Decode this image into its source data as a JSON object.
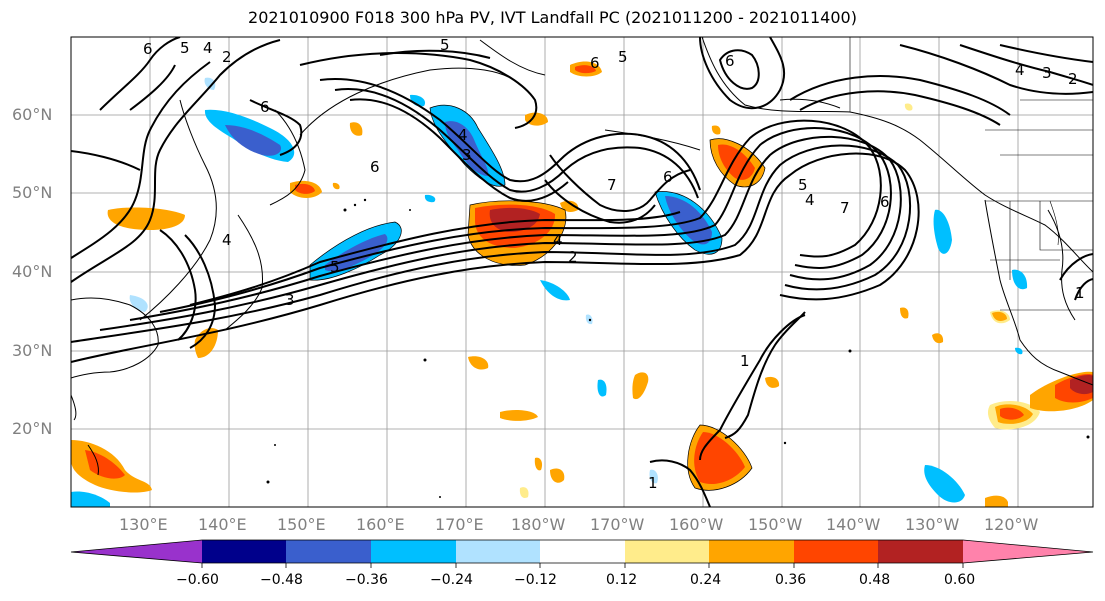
{
  "title": "2021010900 F018 300 hPa PV, IVT Landfall PC (2021011200 - 2021011400)",
  "lat_labels": [
    "60°N",
    "50°N",
    "40°N",
    "30°N",
    "20°N"
  ],
  "lon_labels": [
    "130°E",
    "140°E",
    "150°E",
    "160°E",
    "170°E",
    "180°W",
    "170°W",
    "160°W",
    "150°W",
    "140°W",
    "130°W",
    "120°W"
  ],
  "colorbar": {
    "ticks": [
      "−0.60",
      "−0.48",
      "−0.36",
      "−0.24",
      "−0.12",
      "0.12",
      "0.24",
      "0.36",
      "0.48",
      "0.60"
    ],
    "colors": [
      "#9932cc",
      "#00008b",
      "#3a5fcd",
      "#00bfff",
      "#b0e2ff",
      "#ffffff",
      "#ffec8b",
      "#ffa500",
      "#ff4500",
      "#b22222",
      "#ff82ab"
    ]
  },
  "contour_labels": {
    "a": "6",
    "b": "5",
    "c": "4",
    "d": "2",
    "e": "6",
    "f": "5",
    "g": "6",
    "h": "5",
    "i": "6",
    "j": "4",
    "k": "3",
    "l": "2",
    "m": "7",
    "n": "6",
    "o": "4",
    "p": "5",
    "q": "7",
    "r": "6",
    "s": "4",
    "t": "2",
    "u": "3",
    "v": "4",
    "w": "5",
    "x": "3",
    "y": "6",
    "z": "1",
    "aa": "1",
    "ab": "1",
    "ac": "4"
  }
}
